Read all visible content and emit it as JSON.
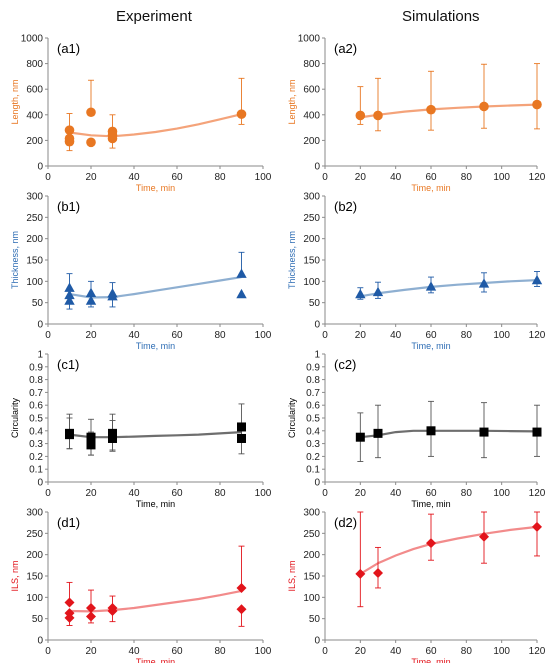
{
  "headers": {
    "experiment": "Experiment",
    "simulations": "Simulations"
  },
  "chart_data": [
    {
      "id": "a1",
      "type": "scatter",
      "panel_label": "(a1)",
      "xlabel": "Time, min",
      "ylabel": "Length, nm",
      "xlim": [
        0,
        100
      ],
      "ylim": [
        0,
        1000
      ],
      "xticks": [
        0,
        20,
        40,
        60,
        80,
        100
      ],
      "yticks": [
        0,
        200,
        400,
        600,
        800,
        1000
      ],
      "color": "#E87722",
      "fit_color": "#F4A37A",
      "axis_label_color": "#E87722",
      "marker": "circle",
      "points": [
        {
          "x": 10,
          "y": 280,
          "err_hi": 130,
          "err_lo": 0
        },
        {
          "x": 10,
          "y": 215,
          "err_hi": 0,
          "err_lo": 0
        },
        {
          "x": 10,
          "y": 190,
          "err_hi": 0,
          "err_lo": 70
        },
        {
          "x": 20,
          "y": 420,
          "err_hi": 250,
          "err_lo": 0
        },
        {
          "x": 20,
          "y": 185,
          "err_hi": 0,
          "err_lo": 0
        },
        {
          "x": 30,
          "y": 270,
          "err_hi": 130,
          "err_lo": 0
        },
        {
          "x": 30,
          "y": 240,
          "err_hi": 0,
          "err_lo": 0
        },
        {
          "x": 30,
          "y": 215,
          "err_hi": 0,
          "err_lo": 75
        },
        {
          "x": 90,
          "y": 405,
          "err_hi": 280,
          "err_lo": 80
        }
      ],
      "fit": [
        [
          10,
          262
        ],
        [
          20,
          240
        ],
        [
          30,
          232
        ],
        [
          40,
          246
        ],
        [
          50,
          266
        ],
        [
          60,
          292
        ],
        [
          70,
          326
        ],
        [
          80,
          365
        ],
        [
          90,
          405
        ]
      ]
    },
    {
      "id": "a2",
      "type": "scatter",
      "panel_label": "(a2)",
      "xlabel": "Time, min",
      "ylabel": "Length, nm",
      "xlim": [
        0,
        120
      ],
      "ylim": [
        0,
        1000
      ],
      "xticks": [
        0,
        20,
        40,
        60,
        80,
        100,
        120
      ],
      "yticks": [
        0,
        200,
        400,
        600,
        800,
        1000
      ],
      "color": "#E87722",
      "fit_color": "#F4A37A",
      "axis_label_color": "#E87722",
      "marker": "circle",
      "points": [
        {
          "x": 20,
          "y": 395,
          "err_hi": 225,
          "err_lo": 70
        },
        {
          "x": 30,
          "y": 395,
          "err_hi": 290,
          "err_lo": 120
        },
        {
          "x": 60,
          "y": 440,
          "err_hi": 300,
          "err_lo": 160
        },
        {
          "x": 90,
          "y": 465,
          "err_hi": 330,
          "err_lo": 170
        },
        {
          "x": 120,
          "y": 480,
          "err_hi": 320,
          "err_lo": 190
        }
      ],
      "fit": [
        [
          20,
          380
        ],
        [
          30,
          400
        ],
        [
          45,
          425
        ],
        [
          60,
          442
        ],
        [
          75,
          455
        ],
        [
          90,
          465
        ],
        [
          105,
          473
        ],
        [
          120,
          480
        ]
      ]
    },
    {
      "id": "b1",
      "type": "scatter",
      "panel_label": "(b1)",
      "xlabel": "Time, min",
      "ylabel": "Thickness, nm",
      "xlim": [
        0,
        100
      ],
      "ylim": [
        0,
        300
      ],
      "xticks": [
        0,
        20,
        40,
        60,
        80,
        100
      ],
      "yticks": [
        0,
        50,
        100,
        150,
        200,
        250,
        300
      ],
      "color": "#1F5AA6",
      "fit_color": "#8EAFD1",
      "axis_label_color": "#2E6DB4",
      "marker": "triangle",
      "points": [
        {
          "x": 10,
          "y": 85,
          "err_hi": 33,
          "err_lo": 0
        },
        {
          "x": 10,
          "y": 68,
          "err_hi": 0,
          "err_lo": 0
        },
        {
          "x": 10,
          "y": 55,
          "err_hi": 0,
          "err_lo": 20
        },
        {
          "x": 20,
          "y": 73,
          "err_hi": 27,
          "err_lo": 0
        },
        {
          "x": 20,
          "y": 55,
          "err_hi": 0,
          "err_lo": 15
        },
        {
          "x": 30,
          "y": 72,
          "err_hi": 25,
          "err_lo": 0
        },
        {
          "x": 30,
          "y": 65,
          "err_hi": 0,
          "err_lo": 25
        },
        {
          "x": 90,
          "y": 118,
          "err_hi": 50,
          "err_lo": 0
        },
        {
          "x": 90,
          "y": 70,
          "err_hi": 0,
          "err_lo": 0
        }
      ],
      "fit": [
        [
          10,
          70
        ],
        [
          20,
          62
        ],
        [
          30,
          63
        ],
        [
          40,
          70
        ],
        [
          50,
          78
        ],
        [
          60,
          86
        ],
        [
          70,
          94
        ],
        [
          80,
          102
        ],
        [
          90,
          110
        ]
      ]
    },
    {
      "id": "b2",
      "type": "scatter",
      "panel_label": "(b2)",
      "xlabel": "Time, min",
      "ylabel": "Thickness, nm",
      "xlim": [
        0,
        120
      ],
      "ylim": [
        0,
        300
      ],
      "xticks": [
        0,
        20,
        40,
        60,
        80,
        100,
        120
      ],
      "yticks": [
        0,
        50,
        100,
        150,
        200,
        250,
        300
      ],
      "color": "#1F5AA6",
      "fit_color": "#8EAFD1",
      "axis_label_color": "#2E6DB4",
      "marker": "triangle",
      "points": [
        {
          "x": 20,
          "y": 70,
          "err_hi": 15,
          "err_lo": 12
        },
        {
          "x": 30,
          "y": 75,
          "err_hi": 23,
          "err_lo": 15
        },
        {
          "x": 60,
          "y": 88,
          "err_hi": 22,
          "err_lo": 15
        },
        {
          "x": 90,
          "y": 95,
          "err_hi": 25,
          "err_lo": 20
        },
        {
          "x": 120,
          "y": 103,
          "err_hi": 20,
          "err_lo": 15
        }
      ],
      "fit": [
        [
          20,
          65
        ],
        [
          30,
          72
        ],
        [
          45,
          80
        ],
        [
          60,
          87
        ],
        [
          75,
          92
        ],
        [
          90,
          96
        ],
        [
          105,
          100
        ],
        [
          120,
          103
        ]
      ]
    },
    {
      "id": "c1",
      "type": "scatter",
      "panel_label": "(c1)",
      "xlabel": "Time, min",
      "ylabel": "Circularity",
      "xlim": [
        0,
        100
      ],
      "ylim": [
        0,
        1
      ],
      "xticks": [
        0,
        20,
        40,
        60,
        80,
        100
      ],
      "yticks": [
        0,
        0.1,
        0.2,
        0.3,
        0.4,
        0.5,
        0.6,
        0.7,
        0.8,
        0.9,
        1
      ],
      "color": "#000000",
      "fit_color": "#6E6E6E",
      "axis_label_color": "#000000",
      "marker": "square",
      "points": [
        {
          "x": 10,
          "y": 0.38,
          "err_hi": 0.15,
          "err_lo": 0.12
        },
        {
          "x": 10,
          "y": 0.37,
          "err_hi": 0.13,
          "err_lo": 0.11
        },
        {
          "x": 20,
          "y": 0.35,
          "err_hi": 0.14,
          "err_lo": 0.14
        },
        {
          "x": 20,
          "y": 0.29,
          "err_hi": 0.1,
          "err_lo": 0.08
        },
        {
          "x": 30,
          "y": 0.38,
          "err_hi": 0.15,
          "err_lo": 0.13
        },
        {
          "x": 30,
          "y": 0.34,
          "err_hi": 0.14,
          "err_lo": 0.1
        },
        {
          "x": 90,
          "y": 0.43,
          "err_hi": 0.18,
          "err_lo": 0.1
        },
        {
          "x": 90,
          "y": 0.34,
          "err_hi": 0.1,
          "err_lo": 0.12
        }
      ],
      "fit": [
        [
          10,
          0.37
        ],
        [
          20,
          0.35
        ],
        [
          30,
          0.35
        ],
        [
          40,
          0.355
        ],
        [
          50,
          0.36
        ],
        [
          60,
          0.365
        ],
        [
          70,
          0.37
        ],
        [
          80,
          0.38
        ],
        [
          90,
          0.39
        ]
      ]
    },
    {
      "id": "c2",
      "type": "scatter",
      "panel_label": "(c2)",
      "xlabel": "Time, min",
      "ylabel": "Circularity",
      "xlim": [
        0,
        120
      ],
      "ylim": [
        0,
        1
      ],
      "xticks": [
        0,
        20,
        40,
        60,
        80,
        100,
        120
      ],
      "yticks": [
        0,
        0.1,
        0.2,
        0.3,
        0.4,
        0.5,
        0.6,
        0.7,
        0.8,
        0.9,
        1
      ],
      "color": "#000000",
      "fit_color": "#6E6E6E",
      "axis_label_color": "#000000",
      "marker": "square",
      "points": [
        {
          "x": 20,
          "y": 0.35,
          "err_hi": 0.19,
          "err_lo": 0.19
        },
        {
          "x": 30,
          "y": 0.38,
          "err_hi": 0.22,
          "err_lo": 0.19
        },
        {
          "x": 60,
          "y": 0.4,
          "err_hi": 0.23,
          "err_lo": 0.2
        },
        {
          "x": 90,
          "y": 0.39,
          "err_hi": 0.23,
          "err_lo": 0.2
        },
        {
          "x": 120,
          "y": 0.39,
          "err_hi": 0.21,
          "err_lo": 0.19
        }
      ],
      "fit": [
        [
          20,
          0.35
        ],
        [
          30,
          0.365
        ],
        [
          40,
          0.39
        ],
        [
          50,
          0.4
        ],
        [
          60,
          0.4
        ],
        [
          75,
          0.4
        ],
        [
          90,
          0.4
        ],
        [
          105,
          0.398
        ],
        [
          120,
          0.395
        ]
      ]
    },
    {
      "id": "d1",
      "type": "scatter",
      "panel_label": "(d1)",
      "xlabel": "Time, min",
      "ylabel": "ILS, nm",
      "xlim": [
        0,
        100
      ],
      "ylim": [
        0,
        300
      ],
      "xticks": [
        0,
        20,
        40,
        60,
        80,
        100
      ],
      "yticks": [
        0,
        50,
        100,
        150,
        200,
        250,
        300
      ],
      "color": "#E2141B",
      "fit_color": "#F28B8B",
      "axis_label_color": "#E2141B",
      "marker": "diamond",
      "points": [
        {
          "x": 10,
          "y": 88,
          "err_hi": 47,
          "err_lo": 0
        },
        {
          "x": 10,
          "y": 63,
          "err_hi": 0,
          "err_lo": 0
        },
        {
          "x": 10,
          "y": 52,
          "err_hi": 0,
          "err_lo": 18
        },
        {
          "x": 20,
          "y": 75,
          "err_hi": 42,
          "err_lo": 0
        },
        {
          "x": 20,
          "y": 55,
          "err_hi": 0,
          "err_lo": 15
        },
        {
          "x": 30,
          "y": 75,
          "err_hi": 28,
          "err_lo": 0
        },
        {
          "x": 30,
          "y": 68,
          "err_hi": 0,
          "err_lo": 25
        },
        {
          "x": 90,
          "y": 122,
          "err_hi": 98,
          "err_lo": 0
        },
        {
          "x": 90,
          "y": 72,
          "err_hi": 0,
          "err_lo": 40
        }
      ],
      "fit": [
        [
          10,
          68
        ],
        [
          20,
          67
        ],
        [
          30,
          70
        ],
        [
          40,
          75
        ],
        [
          50,
          82
        ],
        [
          60,
          89
        ],
        [
          70,
          96
        ],
        [
          80,
          105
        ],
        [
          90,
          115
        ]
      ]
    },
    {
      "id": "d2",
      "type": "scatter",
      "panel_label": "(d2)",
      "xlabel": "Time, min",
      "ylabel": "ILS, nm",
      "xlim": [
        0,
        120
      ],
      "ylim": [
        0,
        300
      ],
      "xticks": [
        0,
        20,
        40,
        60,
        80,
        100,
        120
      ],
      "yticks": [
        0,
        50,
        100,
        150,
        200,
        250,
        300
      ],
      "color": "#E2141B",
      "fit_color": "#F28B8B",
      "axis_label_color": "#E2141B",
      "marker": "diamond",
      "points": [
        {
          "x": 20,
          "y": 155,
          "err_hi": 145,
          "err_lo": 77
        },
        {
          "x": 30,
          "y": 157,
          "err_hi": 60,
          "err_lo": 35
        },
        {
          "x": 60,
          "y": 227,
          "err_hi": 68,
          "err_lo": 40
        },
        {
          "x": 90,
          "y": 242,
          "err_hi": 58,
          "err_lo": 62
        },
        {
          "x": 120,
          "y": 265,
          "err_hi": 35,
          "err_lo": 68
        }
      ],
      "fit": [
        [
          20,
          155
        ],
        [
          30,
          180
        ],
        [
          40,
          198
        ],
        [
          50,
          213
        ],
        [
          60,
          225
        ],
        [
          75,
          238
        ],
        [
          90,
          249
        ],
        [
          105,
          258
        ],
        [
          120,
          265
        ]
      ]
    }
  ]
}
